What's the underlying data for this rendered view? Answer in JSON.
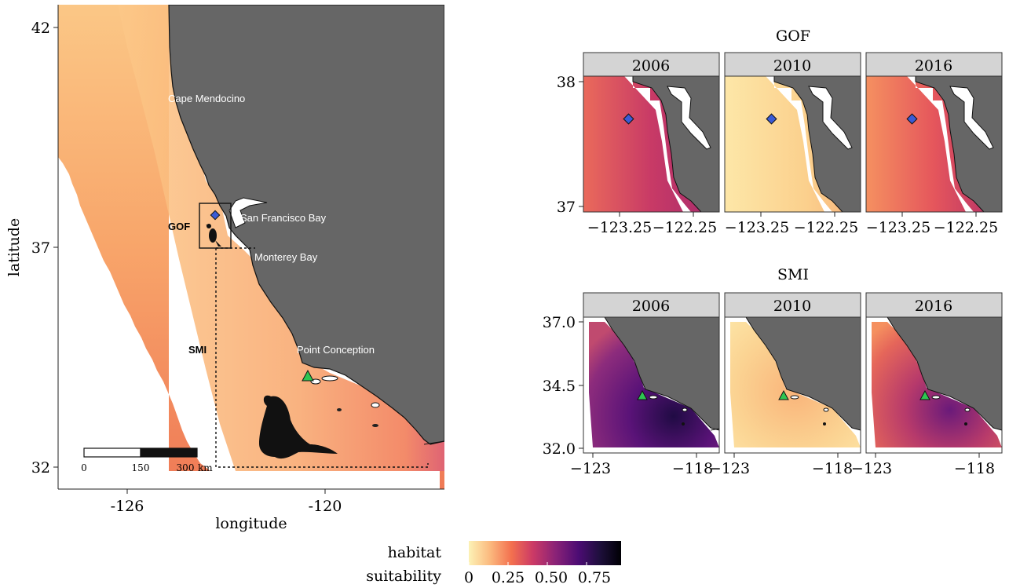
{
  "main_map": {
    "xlabel": "longitude",
    "ylabel": "latitude",
    "x_ticks": [
      "-126",
      "-120"
    ],
    "y_ticks": [
      "42",
      "37",
      "32"
    ],
    "place_labels": [
      "Cape Mendocino",
      "San Francisco Bay",
      "Monterey Bay",
      "Point Conception"
    ],
    "region_labels": [
      "GOF",
      "SMI"
    ],
    "scalebar": {
      "labels": [
        "0",
        "150",
        "300"
      ],
      "unit": "km"
    }
  },
  "insets": {
    "gof": {
      "title": "GOF",
      "panels": [
        "2006",
        "2010",
        "2016"
      ],
      "y_ticks": [
        "38",
        "37"
      ],
      "x_ticks": [
        "−123.25",
        "−122.25"
      ]
    },
    "smi": {
      "title": "SMI",
      "panels": [
        "2006",
        "2010",
        "2016"
      ],
      "y_ticks": [
        "37.0",
        "34.5",
        "32.0"
      ],
      "x_ticks": [
        "−123",
        "−118"
      ]
    }
  },
  "legend": {
    "title_line1": "habitat",
    "title_line2": "suitability",
    "ticks": [
      "0",
      "0.25",
      "0.50",
      "0.75"
    ],
    "colors": [
      "#fcf2b6",
      "#fbb97e",
      "#f3704f",
      "#cc3a66",
      "#8a2277",
      "#4c0c74",
      "#1e0f3c",
      "#000004"
    ]
  },
  "colors": {
    "land": "#666666",
    "ocean_base": "#f7a46a",
    "marker_gof": "#3a5bd6",
    "marker_smi": "#2ec652"
  }
}
